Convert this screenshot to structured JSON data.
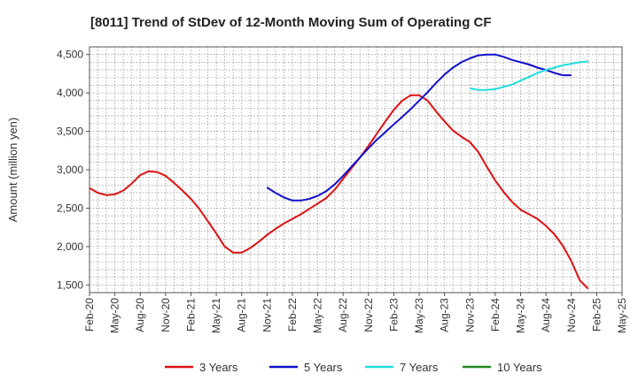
{
  "chart_data": {
    "type": "line",
    "title": "[8011]  Trend of StDev of 12-Month Moving Sum of Operating CF",
    "xlabel": "",
    "ylabel": "Amount (million yen)",
    "ylim": [
      1400,
      4600
    ],
    "yticks": [
      1500,
      2000,
      2500,
      3000,
      3500,
      4000,
      4500
    ],
    "ytick_labels": [
      "1,500",
      "2,000",
      "2,500",
      "3,000",
      "3,500",
      "4,000",
      "4,500"
    ],
    "x_start": "Feb-20",
    "x_end": "May-25",
    "xtick_labels": [
      "Feb-20",
      "May-20",
      "Aug-20",
      "Nov-20",
      "Feb-21",
      "May-21",
      "Aug-21",
      "Nov-21",
      "Feb-22",
      "May-22",
      "Aug-22",
      "Nov-22",
      "Feb-23",
      "May-23",
      "Aug-23",
      "Nov-23",
      "Feb-24",
      "May-24",
      "Aug-24",
      "Nov-24",
      "Feb-25",
      "May-25"
    ],
    "grid": true,
    "legend_position": "bottom",
    "series": [
      {
        "name": "3 Years",
        "color": "#dd1111",
        "start_index": 0,
        "values": [
          2760,
          2700,
          2670,
          2680,
          2730,
          2820,
          2930,
          2980,
          2970,
          2920,
          2830,
          2730,
          2620,
          2490,
          2330,
          2170,
          2000,
          1920,
          1920,
          1980,
          2060,
          2150,
          2230,
          2300,
          2360,
          2420,
          2490,
          2560,
          2630,
          2740,
          2880,
          3020,
          3160,
          3310,
          3470,
          3630,
          3780,
          3900,
          3970,
          3970,
          3900,
          3760,
          3630,
          3510,
          3430,
          3360,
          3230,
          3040,
          2860,
          2710,
          2580,
          2480,
          2420,
          2360,
          2270,
          2160,
          2010,
          1810,
          1560,
          1450
        ]
      },
      {
        "name": "5 Years",
        "color": "#1111cc",
        "start_index": 21,
        "values": [
          2770,
          2700,
          2640,
          2600,
          2600,
          2620,
          2660,
          2720,
          2810,
          2920,
          3040,
          3160,
          3280,
          3390,
          3490,
          3590,
          3690,
          3790,
          3900,
          4010,
          4130,
          4240,
          4330,
          4400,
          4450,
          4490,
          4500,
          4500,
          4470,
          4430,
          4400,
          4370,
          4330,
          4300,
          4260,
          4230,
          4230
        ]
      },
      {
        "name": "7 Years",
        "color": "#22dddd",
        "start_index": 45,
        "values": [
          4060,
          4040,
          4040,
          4050,
          4080,
          4110,
          4160,
          4210,
          4260,
          4300,
          4330,
          4360,
          4380,
          4400,
          4410
        ]
      },
      {
        "name": "10 Years",
        "color": "#228822",
        "start_index": 0,
        "values": []
      }
    ]
  }
}
